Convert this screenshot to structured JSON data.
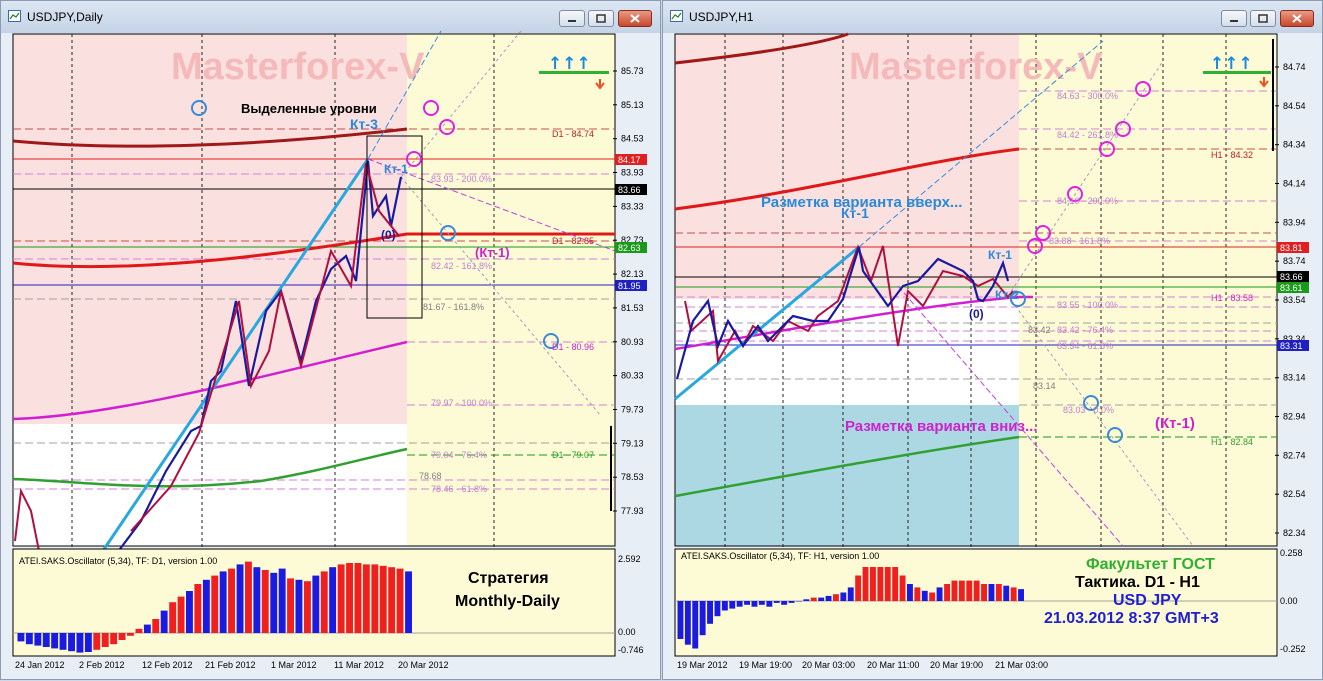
{
  "left_window": {
    "title": "USDJPY,Daily",
    "watermark": "Masterforex-V",
    "annotations": {
      "highlighted_levels": "Выделенные уровни",
      "kt3": "Кт-3",
      "kt1": "Кт-1",
      "zero": "(0)",
      "kt1_paren": "(Кт-1)",
      "strategy_line1": "Стратегия",
      "strategy_line2": "Monthly-Daily"
    },
    "price_ticks": [
      "85.73",
      "85.13",
      "84.53",
      "83.93",
      "83.33",
      "82.73",
      "82.13",
      "81.53",
      "80.93",
      "80.33",
      "79.73",
      "79.13",
      "78.53",
      "77.93"
    ],
    "price_labels": [
      {
        "text": "84.17",
        "color": "#e02020"
      },
      {
        "text": "83.66",
        "color": "#000000"
      },
      {
        "text": "82.63",
        "color": "#1a9a1a"
      },
      {
        "text": "81.95",
        "color": "#2020c0"
      }
    ],
    "level_labels": {
      "d1_8474": "D1 - 84.74",
      "d1_8285": "D1 - 82.85",
      "d1_8096": "D1 - 80.96",
      "d1_7907": "D1 - 79.07",
      "f_8393": "83.93 - 200.0%",
      "f_8242": "82.42 - 161.8%",
      "f_8167": "81.67 - 161.8%",
      "f_7997": "79.97 - 100.0%",
      "f_7904": "79.04 - 76.4%",
      "f_7868": "78.68",
      "f_7846": "78.46 - 61.8%"
    },
    "oscillator": {
      "label": "ATEI.SAKS.Oscillator (5,34), TF: D1, version 1.00",
      "ticks": [
        "2.592",
        "0.00",
        "-0.746"
      ],
      "values": [
        -0.3,
        -0.4,
        -0.45,
        -0.5,
        -0.55,
        -0.6,
        -0.65,
        -0.7,
        -0.68,
        -0.6,
        -0.5,
        -0.4,
        -0.25,
        -0.1,
        0.15,
        0.3,
        0.5,
        0.8,
        1.1,
        1.3,
        1.5,
        1.75,
        1.9,
        2.05,
        2.2,
        2.3,
        2.45,
        2.55,
        2.35,
        2.25,
        2.15,
        2.3,
        1.95,
        1.9,
        1.85,
        2.05,
        2.2,
        2.35,
        2.45,
        2.5,
        2.5,
        2.45,
        2.45,
        2.4,
        2.35,
        2.3,
        2.2
      ],
      "colors": [
        "b",
        "b",
        "b",
        "b",
        "b",
        "b",
        "b",
        "b",
        "b",
        "r",
        "r",
        "r",
        "r",
        "r",
        "r",
        "b",
        "r",
        "b",
        "r",
        "r",
        "b",
        "r",
        "b",
        "r",
        "b",
        "r",
        "b",
        "r",
        "b",
        "r",
        "b",
        "b",
        "r",
        "b",
        "r",
        "b",
        "r",
        "b",
        "r",
        "r",
        "r",
        "r",
        "r",
        "r",
        "r",
        "r",
        "b"
      ]
    },
    "dates": [
      "24 Jan 2012",
      "2 Feb 2012",
      "12 Feb 2012",
      "21 Feb 2012",
      "1 Mar 2012",
      "11 Mar 2012",
      "20 Mar 2012"
    ],
    "arrows": "↑↑↑"
  },
  "right_window": {
    "title": "USDJPY,H1",
    "watermark": "Masterforex-V",
    "annotations": {
      "variant_up": "Разметка варианта вверх...",
      "kt1_a": "Кт-1",
      "kt1_b": "Кт-1",
      "kt2": "Кт-2",
      "zero": "(0)",
      "variant_down": "Разметка варианта вниз...",
      "kt1_paren": "(Кт-1)",
      "faculty": "Факультет ГОСТ",
      "tactic": "Тактика. D1 - H1",
      "pair": "USD JPY",
      "datetime": "21.03.2012 8:37 GMT+3"
    },
    "price_ticks": [
      "84.74",
      "84.54",
      "84.34",
      "84.14",
      "83.94",
      "83.74",
      "83.54",
      "83.34",
      "83.14",
      "82.94",
      "82.74",
      "82.54",
      "82.34"
    ],
    "price_labels": [
      {
        "text": "83.81",
        "color": "#e02020"
      },
      {
        "text": "83.66",
        "color": "#000000"
      },
      {
        "text": "83.61",
        "color": "#1a9a1a"
      },
      {
        "text": "83.31",
        "color": "#2020c0"
      }
    ],
    "level_labels": {
      "h1_8432": "H1 - 84.32",
      "h1_8358": "H1 - 83.58",
      "h1_8284": "H1 - 82.84",
      "f_8463": "84.63 - 300.0%",
      "f_8442": "84.42 - 261.8%",
      "f_8200": "84.10 - 200.0%",
      "f_8388": "83.88 - 161.8%",
      "f_8355": "83.55 - 100.0%",
      "f_8342": "83.42",
      "f_8342b": "83.42 - 76.4%",
      "f_8334": "83.34 - 61.8%",
      "f_8314": "83.14",
      "f_8303": "83.03 - 0.0%"
    },
    "oscillator": {
      "label": "ATEI.SAKS.Oscillator (5,34), TF: H1, version 1.00",
      "ticks": [
        "0.258",
        "0.00",
        "-0.252"
      ],
      "values": [
        -0.2,
        -0.23,
        -0.25,
        -0.18,
        -0.12,
        -0.08,
        -0.05,
        -0.04,
        -0.03,
        -0.02,
        -0.03,
        -0.02,
        -0.03,
        -0.01,
        -0.02,
        -0.01,
        0.0,
        0.01,
        0.02,
        0.02,
        0.03,
        0.04,
        0.05,
        0.08,
        0.15,
        0.2,
        0.2,
        0.2,
        0.2,
        0.2,
        0.15,
        0.1,
        0.08,
        0.06,
        0.05,
        0.08,
        0.1,
        0.12,
        0.12,
        0.12,
        0.12,
        0.1,
        0.1,
        0.1,
        0.09,
        0.08,
        0.07
      ],
      "colors": [
        "b",
        "b",
        "b",
        "b",
        "b",
        "b",
        "b",
        "b",
        "b",
        "b",
        "b",
        "b",
        "b",
        "b",
        "b",
        "b",
        "b",
        "b",
        "r",
        "b",
        "b",
        "r",
        "b",
        "b",
        "r",
        "r",
        "r",
        "r",
        "r",
        "r",
        "r",
        "b",
        "r",
        "b",
        "r",
        "b",
        "r",
        "r",
        "r",
        "r",
        "r",
        "r",
        "b",
        "r",
        "b",
        "r",
        "b"
      ]
    },
    "dates": [
      "19 Mar 2012",
      "19 Mar 19:00",
      "20 Mar 03:00",
      "20 Mar 11:00",
      "20 Mar 19:00",
      "21 Mar 03:00"
    ],
    "arrows": "↑↑↑"
  }
}
